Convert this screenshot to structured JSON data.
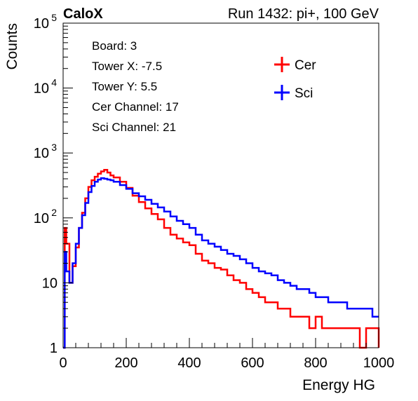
{
  "header": {
    "experiment": "CaloX",
    "run_label": "Run 1432: pi+, 100 GeV"
  },
  "info_box": {
    "board": "Board: 3",
    "tower_x": "Tower X: -7.5",
    "tower_y": "Tower Y: 5.5",
    "cer_channel": "Cer Channel: 17",
    "sci_channel": "Sci Channel: 21"
  },
  "colors": {
    "cer": "#ff0000",
    "sci": "#0000ff",
    "axis": "#000000"
  },
  "chart_data": {
    "type": "line",
    "xlabel": "Energy HG",
    "ylabel": "Counts",
    "xlim": [
      0,
      1000
    ],
    "ylim": [
      1,
      100000
    ],
    "yscale": "log",
    "x_ticks": [
      0,
      200,
      400,
      600,
      800,
      1000
    ],
    "y_ticks": [
      {
        "value": 1,
        "label": "1"
      },
      {
        "value": 10,
        "label": "10"
      },
      {
        "value": 100,
        "label": "10",
        "exp": "2"
      },
      {
        "value": 1000,
        "label": "10",
        "exp": "3"
      },
      {
        "value": 10000,
        "label": "10",
        "exp": "4"
      },
      {
        "value": 100000,
        "label": "10",
        "exp": "5"
      }
    ],
    "legend_position": "top-right",
    "grid": false,
    "series": [
      {
        "name": "Cer",
        "color": "#ff0000",
        "x": [
          0,
          5,
          10,
          20,
          30,
          40,
          50,
          60,
          70,
          80,
          90,
          100,
          110,
          120,
          130,
          140,
          150,
          160,
          180,
          200,
          220,
          240,
          260,
          280,
          300,
          320,
          340,
          360,
          380,
          400,
          420,
          440,
          460,
          480,
          500,
          520,
          540,
          560,
          580,
          600,
          620,
          640,
          660,
          680,
          700,
          720,
          740,
          760,
          780,
          800,
          820,
          840,
          860,
          880,
          900,
          920,
          940,
          960,
          980,
          1000
        ],
        "values": [
          1,
          70,
          40,
          10,
          18,
          35,
          70,
          120,
          200,
          300,
          380,
          430,
          480,
          520,
          550,
          500,
          450,
          420,
          360,
          290,
          220,
          175,
          140,
          115,
          95,
          70,
          55,
          48,
          42,
          38,
          28,
          22,
          20,
          17,
          16,
          13,
          11,
          10,
          8,
          7,
          6,
          5,
          5,
          4,
          4,
          3,
          3,
          3,
          2,
          3,
          2,
          2,
          2,
          2,
          2,
          2,
          1,
          2,
          2,
          1
        ]
      },
      {
        "name": "Sci",
        "color": "#0000ff",
        "x": [
          0,
          5,
          10,
          20,
          30,
          40,
          50,
          60,
          70,
          80,
          90,
          100,
          110,
          120,
          130,
          140,
          150,
          160,
          180,
          200,
          220,
          240,
          260,
          280,
          300,
          320,
          340,
          360,
          380,
          400,
          420,
          440,
          460,
          480,
          500,
          520,
          540,
          560,
          580,
          600,
          620,
          640,
          660,
          680,
          700,
          720,
          740,
          760,
          780,
          800,
          820,
          840,
          860,
          880,
          900,
          920,
          940,
          960,
          980,
          1000
        ],
        "values": [
          1,
          30,
          15,
          10,
          20,
          40,
          70,
          110,
          170,
          250,
          310,
          360,
          390,
          410,
          400,
          390,
          380,
          360,
          320,
          280,
          240,
          215,
          190,
          165,
          145,
          125,
          105,
          90,
          80,
          70,
          55,
          45,
          40,
          36,
          32,
          28,
          26,
          23,
          20,
          17,
          15,
          14,
          13,
          11,
          10,
          9,
          8,
          8,
          7,
          6,
          6,
          5,
          5,
          5,
          4,
          4,
          4,
          4,
          3,
          3
        ]
      }
    ]
  }
}
